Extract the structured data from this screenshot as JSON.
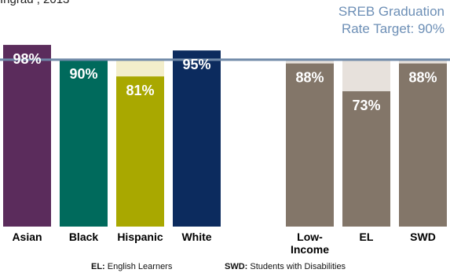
{
  "top_partial_text": "Ingrad , 2013",
  "target_label": {
    "line1": "SREB Graduation",
    "line2": "Rate Target: 90%"
  },
  "chart_data": {
    "type": "bar",
    "categories": [
      "Asian",
      "Black",
      "Hispanic",
      "White",
      "",
      "Low-Income",
      "EL",
      "SWD"
    ],
    "category_labels": [
      [
        "Asian"
      ],
      [
        "Black"
      ],
      [
        "Hispanic"
      ],
      [
        "White"
      ],
      [
        ""
      ],
      [
        "Low-",
        "Income"
      ],
      [
        "EL"
      ],
      [
        "SWD"
      ]
    ],
    "values": [
      98,
      90,
      81,
      95,
      null,
      88,
      73,
      88
    ],
    "value_labels": [
      "98%",
      "90%",
      "81%",
      "95%",
      "",
      "88%",
      "73%",
      "88%"
    ],
    "target": 90,
    "ylim": [
      0,
      101
    ],
    "colors": [
      "#5b2c5c",
      "#006a5c",
      "#a9a800",
      "#0c2b5e",
      "",
      "#837669",
      "#837669",
      "#837669"
    ],
    "gap_colors": [
      "",
      "",
      "#f3eecb",
      "",
      "",
      "#e7e1dc",
      "#e7e1dc",
      "#e7e1dc"
    ],
    "target_line_color": "#6f89a8",
    "value_label_color": "#ffffff",
    "legend": [
      {
        "key": "EL:",
        "text": "English Learners"
      },
      {
        "key": "SWD:",
        "text": "Students with Disabilities"
      }
    ]
  }
}
